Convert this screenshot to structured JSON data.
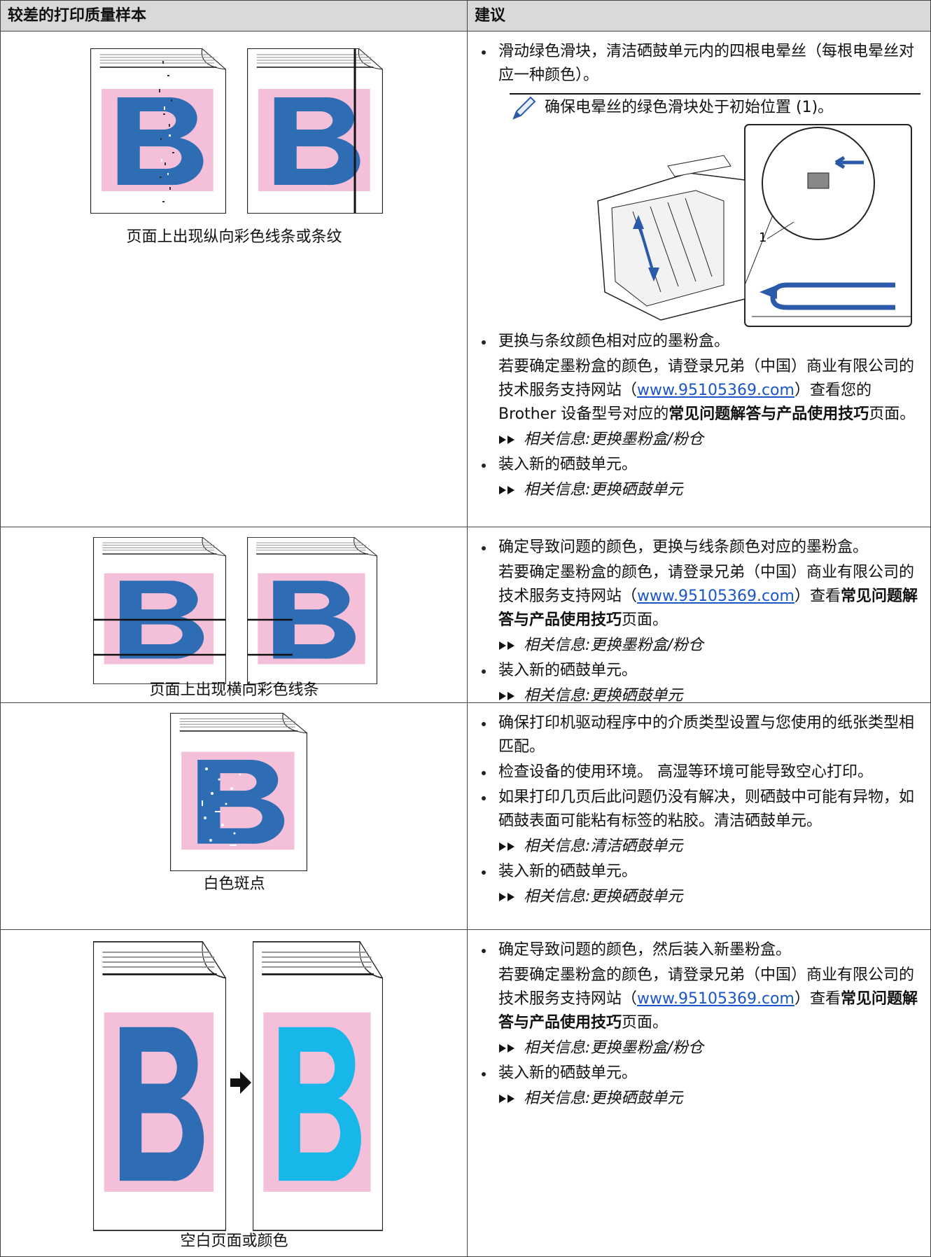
{
  "table": {
    "headers": [
      "较差的打印质量样本",
      "建议"
    ],
    "rows": [
      {
        "caption": "页面上出现纵向彩色线条或条纹",
        "advice": [
          {
            "type": "bullet",
            "text": "滑动绿色滑块，清洁硒鼓单元内的四根电晕丝（每根电晕丝对应一种颜色）。"
          },
          {
            "type": "note",
            "text": "确保电晕丝的绿色滑块处于初始位置 (1)。",
            "figure_label": "1"
          },
          {
            "type": "bullet",
            "text": "更换与条纹颜色相对应的墨粉盒。"
          },
          {
            "type": "para",
            "segments": [
              {
                "text": "若要确定墨粉盒的颜色，请登录兄弟（中国）商业有限公司的技术服务支持网站（"
              },
              {
                "text": "www.95105369.com",
                "link": true
              },
              {
                "text": "）查看您的 Brother 设备型号对应的"
              },
              {
                "text": "常见问题解答与产品使用技巧",
                "bold": true
              },
              {
                "text": "页面。"
              }
            ]
          },
          {
            "type": "related",
            "label": "相关信息:",
            "target": "更换墨粉盒/粉仓"
          },
          {
            "type": "bullet",
            "text": "装入新的硒鼓单元。"
          },
          {
            "type": "related",
            "label": "相关信息:",
            "target": "更换硒鼓单元"
          }
        ]
      },
      {
        "caption": "页面上出现横向彩色线条",
        "advice": [
          {
            "type": "bullet",
            "text": "确定导致问题的颜色，更换与线条颜色对应的墨粉盒。"
          },
          {
            "type": "para",
            "segments": [
              {
                "text": "若要确定墨粉盒的颜色，请登录兄弟（中国）商业有限公司的技术服务支持网站（"
              },
              {
                "text": "www.95105369.com",
                "link": true
              },
              {
                "text": "）查看"
              },
              {
                "text": "常见问题解答与产品使用技巧",
                "bold": true
              },
              {
                "text": "页面。"
              }
            ]
          },
          {
            "type": "related",
            "label": "相关信息:",
            "target": "更换墨粉盒/粉仓"
          },
          {
            "type": "bullet",
            "text": "装入新的硒鼓单元。"
          },
          {
            "type": "related",
            "label": "相关信息:",
            "target": "更换硒鼓单元"
          }
        ]
      },
      {
        "caption": "白色斑点",
        "advice": [
          {
            "type": "bullet",
            "text": "确保打印机驱动程序中的介质类型设置与您使用的纸张类型相匹配。"
          },
          {
            "type": "bullet",
            "text": "检查设备的使用环境。 高湿等环境可能导致空心打印。"
          },
          {
            "type": "bullet",
            "text": "如果打印几页后此问题仍没有解决，则硒鼓中可能有异物，如硒鼓表面可能粘有标签的粘胶。清洁硒鼓单元。"
          },
          {
            "type": "related",
            "label": "相关信息:",
            "target": "清洁硒鼓单元"
          },
          {
            "type": "bullet",
            "text": "装入新的硒鼓单元。"
          },
          {
            "type": "related",
            "label": "相关信息:",
            "target": "更换硒鼓单元"
          }
        ]
      },
      {
        "caption": "空白页面或颜色",
        "advice": [
          {
            "type": "bullet",
            "text": "确定导致问题的颜色，然后装入新墨粉盒。"
          },
          {
            "type": "para",
            "segments": [
              {
                "text": "若要确定墨粉盒的颜色，请登录兄弟（中国）商业有限公司的技术服务支持网站（"
              },
              {
                "text": "www.95105369.com",
                "link": true
              },
              {
                "text": "）查看"
              },
              {
                "text": "常见问题解答与产品使用技巧",
                "bold": true
              },
              {
                "text": "页面。"
              }
            ]
          },
          {
            "type": "related",
            "label": "相关信息:",
            "target": "更换墨粉盒/粉仓"
          },
          {
            "type": "bullet",
            "text": "装入新的硒鼓单元。"
          },
          {
            "type": "related",
            "label": "相关信息:",
            "target": "更换硒鼓单元"
          }
        ]
      }
    ]
  }
}
